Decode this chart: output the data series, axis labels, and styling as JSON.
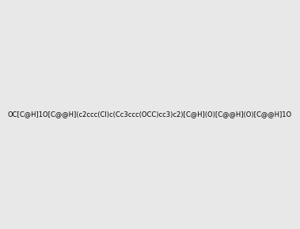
{
  "smiles": "OC[C@H]1O[C@@H](c2ccc(Cl)c(Cc3ccc(OCC)cc3)c2)[C@H](O)[C@@H](O)[C@@H]1O",
  "image_size": 300,
  "background_color": "#e8e8e8"
}
